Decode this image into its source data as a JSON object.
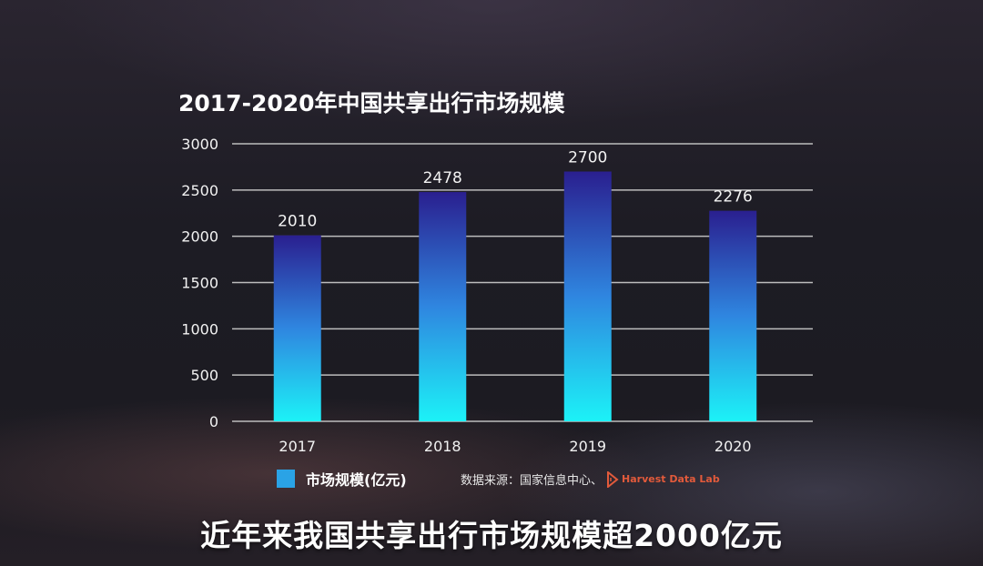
{
  "chart_data": {
    "type": "bar",
    "title": "2017-2020年中国共享出行市场规模",
    "categories": [
      "2017",
      "2018",
      "2019",
      "2020"
    ],
    "series": [
      {
        "name": "市场规模(亿元)",
        "values": [
          2010,
          2478,
          2700,
          2276
        ]
      }
    ],
    "ylim": [
      0,
      3000
    ],
    "yticks": [
      0,
      500,
      1000,
      1500,
      2000,
      2500,
      3000
    ],
    "grid": true,
    "legend_position": "bottom-left",
    "xlabel": "",
    "ylabel": ""
  },
  "legend": {
    "label": "市场规模(亿元)",
    "color": "#2aa3e6"
  },
  "source": {
    "prefix": "数据来源：国家信息中心、",
    "brand": "Harvest Data Lab"
  },
  "caption": "近年来我国共享出行市场规模超2000亿元",
  "colors": {
    "bar_top": "#2a1f8f",
    "bar_mid": "#2f86e0",
    "bar_bottom": "#1cf2f7",
    "grid": "#bdbdbd"
  }
}
